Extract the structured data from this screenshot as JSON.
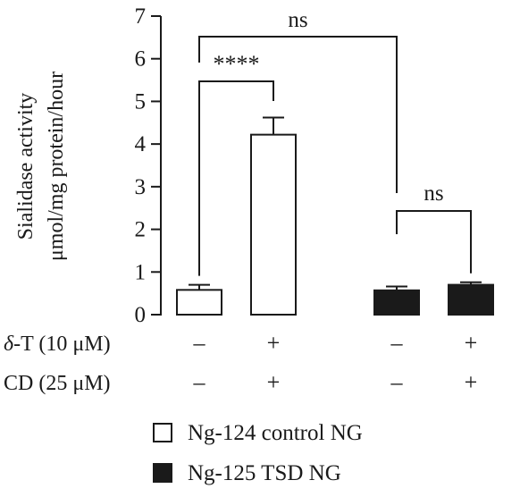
{
  "chart_data": {
    "type": "bar",
    "ylabel_line1": "Sialidase activity",
    "ylabel_line2": "μmol/mg protein/hour",
    "ylim": [
      0,
      7
    ],
    "yticks": [
      0,
      1,
      2,
      3,
      4,
      5,
      6,
      7
    ],
    "bars": [
      {
        "value": 0.58,
        "error": 0.12,
        "series": "Ng-124 control NG",
        "delta_t": "–",
        "cd": "–"
      },
      {
        "value": 4.22,
        "error": 0.4,
        "series": "Ng-124 control NG",
        "delta_t": "+",
        "cd": "+"
      },
      {
        "value": 0.57,
        "error": 0.09,
        "series": "Ng-125 TSD NG",
        "delta_t": "–",
        "cd": "–"
      },
      {
        "value": 0.7,
        "error": 0.06,
        "series": "Ng-125 TSD NG",
        "delta_t": "+",
        "cd": "+"
      }
    ],
    "conditions": [
      {
        "label_prefix": "δ",
        "label_suffix": "-T (10 μM)"
      },
      {
        "label_prefix": "",
        "label_suffix": "CD (25 μM)"
      }
    ],
    "significance": [
      {
        "from": 0,
        "to": 1,
        "label": "****"
      },
      {
        "from": 0,
        "to": 2,
        "label": "ns"
      },
      {
        "from": 2,
        "to": 3,
        "label": "ns"
      }
    ],
    "legend": [
      {
        "name": "Ng-124 control NG",
        "color": "#ffffff"
      },
      {
        "name": "Ng-125 TSD NG",
        "color": "#1a1a1a"
      }
    ]
  }
}
